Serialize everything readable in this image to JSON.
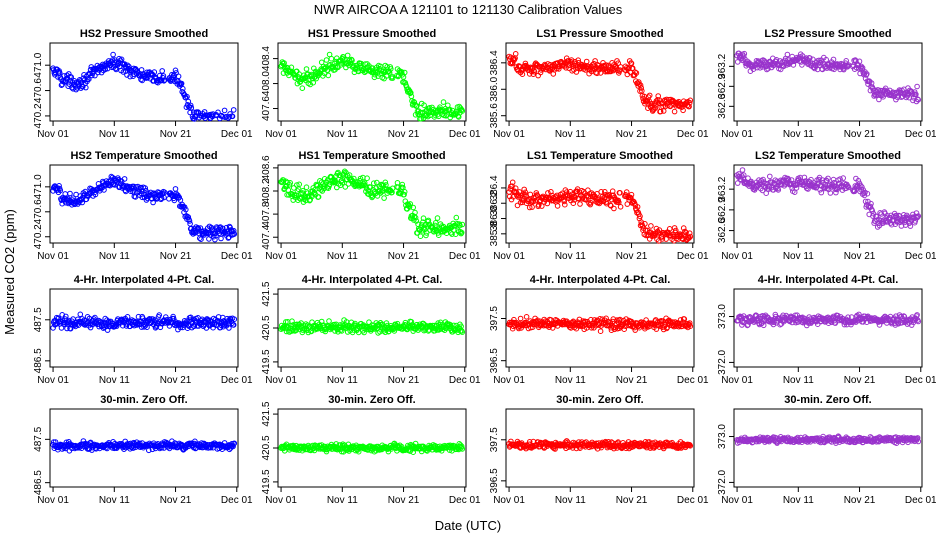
{
  "title": "NWR   AIRCOA A   121101 to 121130   Calibration Values",
  "xlabel": "Date (UTC)",
  "ylabel": "Measured CO2 (ppm)",
  "x_tick_labels": [
    "Nov 01",
    "Nov 11",
    "Nov 21",
    "Dec 01"
  ],
  "x_tick_days": [
    1,
    11,
    21,
    31
  ],
  "xlim": [
    0.5,
    31.2
  ],
  "colors": {
    "HS2": "#0000ff",
    "HS1": "#00ff00",
    "LS1": "#ff0000",
    "LS2": "#9933cc"
  },
  "chart_data": [
    {
      "type": "scatter",
      "title": "HS2 Pressure Smoothed",
      "series": "HS2",
      "shape": "hs2",
      "ylim": [
        470.12,
        471.35
      ],
      "yticks": [
        "470.2",
        "470.6",
        "471.0"
      ],
      "base": 470.79,
      "noise": 0.05,
      "step": -0.62,
      "step_day": 21.5,
      "hump": 0.24
    },
    {
      "type": "scatter",
      "title": "HS1 Pressure Smoothed",
      "series": "HS1",
      "shape": "hs1",
      "ylim": [
        407.4,
        408.65
      ],
      "yticks": [
        "407.6",
        "408.0",
        "408.4"
      ],
      "base": 408.15,
      "noise": 0.06,
      "step": -0.6,
      "step_day": 20.8,
      "hump": 0.22
    },
    {
      "type": "scatter",
      "title": "LS1 Pressure Smoothed",
      "series": "LS1",
      "shape": "ls1",
      "ylim": [
        385.52,
        386.7
      ],
      "yticks": [
        "385.6",
        "386.0",
        "386.4"
      ],
      "base": 386.32,
      "noise": 0.05,
      "step": -0.55,
      "step_day": 21.0,
      "hump": 0.05
    },
    {
      "type": "scatter",
      "title": "LS2 Pressure Smoothed",
      "series": "LS2",
      "shape": "ls2",
      "ylim": [
        362.38,
        363.55
      ],
      "yticks": [
        "362.6",
        "362.9",
        "363.2"
      ],
      "base": 363.23,
      "noise": 0.05,
      "step": -0.45,
      "step_day": 21.0,
      "hump": 0.05
    },
    {
      "type": "scatter",
      "title": "HS2 Temperature Smoothed",
      "series": "HS2",
      "shape": "hs2",
      "ylim": [
        470.1,
        471.35
      ],
      "yticks": [
        "470.2",
        "470.6",
        "471.0"
      ],
      "base": 470.85,
      "noise": 0.05,
      "step": -0.58,
      "step_day": 21.5,
      "hump": 0.24
    },
    {
      "type": "scatter",
      "title": "HS1 Temperature Smoothed",
      "series": "HS1",
      "shape": "hs1",
      "ylim": [
        407.3,
        408.65
      ],
      "yticks": [
        "407.4",
        "407.8",
        "408.2",
        "408.6"
      ],
      "base": 408.2,
      "noise": 0.07,
      "step": -0.62,
      "step_day": 20.8,
      "hump": 0.22
    },
    {
      "type": "scatter",
      "title": "LS1 Temperature Smoothed",
      "series": "LS1",
      "shape": "ls1",
      "ylim": [
        385.68,
        386.7
      ],
      "yticks": [
        "385.8",
        "386.0",
        "386.2",
        "386.4"
      ],
      "base": 386.25,
      "noise": 0.05,
      "step": -0.47,
      "step_day": 21.0,
      "hump": 0.05
    },
    {
      "type": "scatter",
      "title": "LS2 Temperature Smoothed",
      "series": "LS2",
      "shape": "ls2",
      "ylim": [
        362.42,
        363.55
      ],
      "yticks": [
        "362.6",
        "362.9",
        "363.2"
      ],
      "base": 363.25,
      "noise": 0.05,
      "step": -0.48,
      "step_day": 21.0,
      "hump": 0.05
    },
    {
      "type": "scatter",
      "title": "4-Hr. Interpolated 4-Pt. Cal.",
      "series": "HS2",
      "shape": "flat",
      "ylim": [
        486.35,
        488.25
      ],
      "yticks": [
        "486.5",
        "487.5"
      ],
      "base": 487.43,
      "noise": 0.07
    },
    {
      "type": "scatter",
      "title": "4-Hr. Interpolated 4-Pt. Cal.",
      "series": "HS1",
      "shape": "flat",
      "ylim": [
        419.35,
        421.65
      ],
      "yticks": [
        "419.5",
        "420.5",
        "421.5"
      ],
      "base": 420.52,
      "noise": 0.08
    },
    {
      "type": "scatter",
      "title": "4-Hr. Interpolated 4-Pt. Cal.",
      "series": "LS1",
      "shape": "flat",
      "ylim": [
        396.35,
        398.2
      ],
      "yticks": [
        "396.5",
        "397.5"
      ],
      "base": 397.38,
      "noise": 0.06
    },
    {
      "type": "scatter",
      "title": "4-Hr. Interpolated 4-Pt. Cal.",
      "series": "LS2",
      "shape": "flat",
      "ylim": [
        371.9,
        373.6
      ],
      "yticks": [
        "372.0",
        "373.0"
      ],
      "base": 372.93,
      "noise": 0.05
    },
    {
      "type": "scatter",
      "title": "30-min. Zero Off.",
      "series": "HS2",
      "shape": "flat",
      "ylim": [
        486.4,
        488.2
      ],
      "yticks": [
        "486.5",
        "487.5"
      ],
      "base": 487.35,
      "noise": 0.04
    },
    {
      "type": "scatter",
      "title": "30-min. Zero Off.",
      "series": "HS1",
      "shape": "flat",
      "ylim": [
        419.35,
        421.65
      ],
      "yticks": [
        "419.5",
        "420.5",
        "421.5"
      ],
      "base": 420.51,
      "noise": 0.05
    },
    {
      "type": "scatter",
      "title": "30-min. Zero Off.",
      "series": "LS1",
      "shape": "flat",
      "ylim": [
        396.35,
        398.25
      ],
      "yticks": [
        "396.5",
        "397.5"
      ],
      "base": 397.37,
      "noise": 0.04
    },
    {
      "type": "scatter",
      "title": "30-min. Zero Off.",
      "series": "LS2",
      "shape": "flat",
      "ylim": [
        371.9,
        373.6
      ],
      "yticks": [
        "372.0",
        "373.0"
      ],
      "base": 372.93,
      "noise": 0.03
    }
  ]
}
